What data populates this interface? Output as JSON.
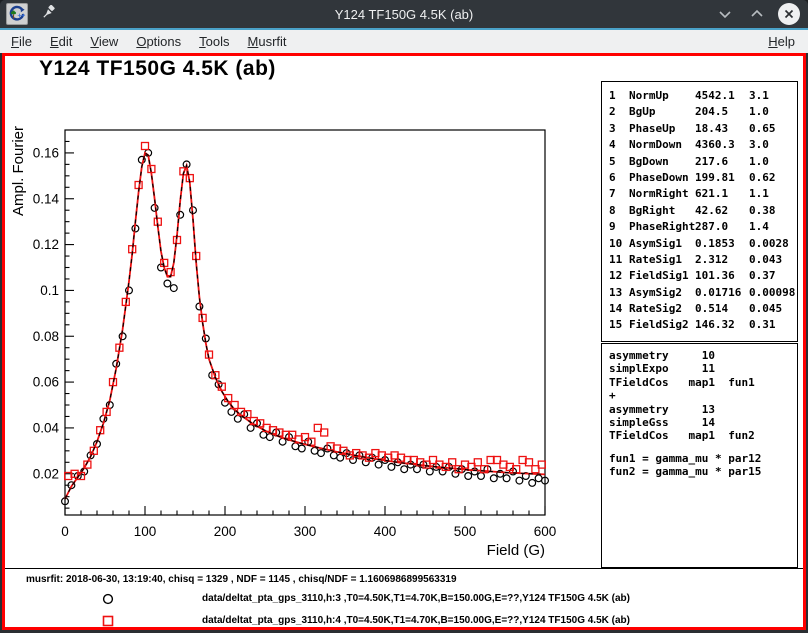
{
  "window": {
    "title": "Y124 TF150G 4.5K (ab)",
    "controls": [
      "minimize",
      "maximize",
      "close"
    ]
  },
  "menubar": {
    "items": [
      {
        "mnemonic": "F",
        "rest": "ile"
      },
      {
        "mnemonic": "E",
        "rest": "dit"
      },
      {
        "mnemonic": "V",
        "rest": "iew"
      },
      {
        "mnemonic": "O",
        "rest": "ptions"
      },
      {
        "mnemonic": "T",
        "rest": "ools"
      },
      {
        "mnemonic": "M",
        "rest": "usrfit"
      }
    ],
    "help": {
      "mnemonic": "H",
      "rest": "elp"
    }
  },
  "plot": {
    "title": "Y124 TF150G 4.5K (ab)",
    "xlabel": "Field (G)",
    "ylabel": "Ampl. Fourier"
  },
  "param_box": {
    "rows": [
      {
        "num": "1",
        "name": "NormUp",
        "value": "4542.1",
        "error": "3.1"
      },
      {
        "num": "2",
        "name": "BgUp",
        "value": "204.5",
        "error": "1.0"
      },
      {
        "num": "3",
        "name": "PhaseUp",
        "value": "18.43",
        "error": "0.65"
      },
      {
        "num": "4",
        "name": "NormDown",
        "value": "4360.3",
        "error": "3.0"
      },
      {
        "num": "5",
        "name": "BgDown",
        "value": "217.6",
        "error": "1.0"
      },
      {
        "num": "6",
        "name": "PhaseDown",
        "value": "199.81",
        "error": "0.62"
      },
      {
        "num": "7",
        "name": "NormRight",
        "value": "621.1",
        "error": "1.1"
      },
      {
        "num": "8",
        "name": "BgRight",
        "value": "42.62",
        "error": "0.38"
      },
      {
        "num": "9",
        "name": "PhaseRight",
        "value": "287.0",
        "error": "1.4"
      },
      {
        "num": "10",
        "name": "AsymSig1",
        "value": "0.1853",
        "error": "0.0028"
      },
      {
        "num": "11",
        "name": "RateSig1",
        "value": "2.312",
        "error": "0.043"
      },
      {
        "num": "12",
        "name": "FieldSig1",
        "value": "101.36",
        "error": "0.37"
      },
      {
        "num": "13",
        "name": "AsymSig2",
        "value": "0.01716",
        "error": "0.00098"
      },
      {
        "num": "14",
        "name": "RateSig2",
        "value": "0.514",
        "error": "0.045"
      },
      {
        "num": "15",
        "name": "FieldSig2",
        "value": "146.32",
        "error": "0.31"
      }
    ]
  },
  "theory_box": {
    "lines": [
      "asymmetry     10",
      "simplExpo     11",
      "TFieldCos   map1  fun1",
      "+",
      "asymmetry     13",
      "simpleGss     14",
      "TFieldCos   map1  fun2",
      "",
      "fun1 = gamma_mu * par12",
      "fun2 = gamma_mu * par15"
    ]
  },
  "footer": {
    "info": "musrfit: 2018-06-30, 13:19:40, chisq = 1329 , NDF = 1145 , chisq/NDF = 1.1606986899563319",
    "legend": [
      {
        "marker": "circle",
        "color": "#000000",
        "label": "data/deltat_pta_gps_3110,h:3 ,T0=4.50K,T1=4.70K,B=150.00G,E=??,Y124 TF150G 4.5K (ab)"
      },
      {
        "marker": "square",
        "color": "#ee1111",
        "label": "data/deltat_pta_gps_3110,h:4 ,T0=4.50K,T1=4.70K,B=150.00G,E=??,Y124 TF150G 4.5K (ab)"
      }
    ]
  },
  "colors": {
    "canvas_highlight": "#ff0000",
    "series_black": "#000000",
    "series_red": "#ee1111",
    "titlebar_bg": "#31363b",
    "menubar_bg": "#eff0f1",
    "accent_blue": "#4aa2c8"
  },
  "chart_data": {
    "type": "scatter",
    "title": "Y124 TF150G 4.5K (ab)",
    "xlabel": "Field (G)",
    "ylabel": "Ampl. Fourier",
    "xlim": [
      0,
      600
    ],
    "ylim": [
      0.002,
      0.17
    ],
    "x_tick_major": 100,
    "x_tick_minor": 20,
    "y_tick_major": 0.02,
    "y_tick_minor": 0.005,
    "grid": false,
    "legend_position": "bottom",
    "series": [
      {
        "name": "h3 (black circles)",
        "marker": "circle",
        "color": "#000000",
        "style": "points",
        "points": [
          [
            0,
            0.008
          ],
          [
            8,
            0.015
          ],
          [
            16,
            0.019
          ],
          [
            24,
            0.021
          ],
          [
            32,
            0.028
          ],
          [
            40,
            0.033
          ],
          [
            48,
            0.044
          ],
          [
            56,
            0.05
          ],
          [
            64,
            0.068
          ],
          [
            72,
            0.08
          ],
          [
            80,
            0.1
          ],
          [
            88,
            0.127
          ],
          [
            96,
            0.157
          ],
          [
            104,
            0.16
          ],
          [
            112,
            0.136
          ],
          [
            120,
            0.11
          ],
          [
            128,
            0.103
          ],
          [
            136,
            0.101
          ],
          [
            144,
            0.133
          ],
          [
            152,
            0.155
          ],
          [
            160,
            0.135
          ],
          [
            168,
            0.093
          ],
          [
            176,
            0.079
          ],
          [
            184,
            0.063
          ],
          [
            192,
            0.059
          ],
          [
            200,
            0.051
          ],
          [
            208,
            0.047
          ],
          [
            216,
            0.044
          ],
          [
            224,
            0.046
          ],
          [
            232,
            0.04
          ],
          [
            240,
            0.042
          ],
          [
            248,
            0.037
          ],
          [
            256,
            0.036
          ],
          [
            264,
            0.038
          ],
          [
            272,
            0.034
          ],
          [
            280,
            0.036
          ],
          [
            288,
            0.032
          ],
          [
            296,
            0.031
          ],
          [
            304,
            0.034
          ],
          [
            312,
            0.03
          ],
          [
            320,
            0.029
          ],
          [
            328,
            0.031
          ],
          [
            336,
            0.028
          ],
          [
            344,
            0.027
          ],
          [
            352,
            0.029
          ],
          [
            360,
            0.026
          ],
          [
            368,
            0.028
          ],
          [
            376,
            0.025
          ],
          [
            384,
            0.027
          ],
          [
            392,
            0.024
          ],
          [
            400,
            0.026
          ],
          [
            408,
            0.023
          ],
          [
            416,
            0.025
          ],
          [
            424,
            0.022
          ],
          [
            432,
            0.024
          ],
          [
            440,
            0.022
          ],
          [
            448,
            0.024
          ],
          [
            456,
            0.021
          ],
          [
            464,
            0.023
          ],
          [
            472,
            0.021
          ],
          [
            480,
            0.023
          ],
          [
            488,
            0.02
          ],
          [
            496,
            0.022
          ],
          [
            504,
            0.019
          ],
          [
            512,
            0.021
          ],
          [
            520,
            0.019
          ],
          [
            528,
            0.022
          ],
          [
            536,
            0.018
          ],
          [
            544,
            0.02
          ],
          [
            552,
            0.018
          ],
          [
            560,
            0.021
          ],
          [
            568,
            0.017
          ],
          [
            576,
            0.019
          ],
          [
            584,
            0.016
          ],
          [
            592,
            0.018
          ],
          [
            600,
            0.017
          ]
        ]
      },
      {
        "name": "h4 (red squares)",
        "marker": "square",
        "color": "#ee1111",
        "style": "points",
        "points": [
          [
            4,
            0.019
          ],
          [
            12,
            0.02
          ],
          [
            20,
            0.019
          ],
          [
            28,
            0.024
          ],
          [
            36,
            0.03
          ],
          [
            44,
            0.039
          ],
          [
            52,
            0.047
          ],
          [
            60,
            0.06
          ],
          [
            68,
            0.075
          ],
          [
            76,
            0.095
          ],
          [
            84,
            0.118
          ],
          [
            92,
            0.146
          ],
          [
            100,
            0.163
          ],
          [
            108,
            0.153
          ],
          [
            116,
            0.13
          ],
          [
            124,
            0.112
          ],
          [
            132,
            0.108
          ],
          [
            140,
            0.122
          ],
          [
            148,
            0.152
          ],
          [
            156,
            0.149
          ],
          [
            164,
            0.115
          ],
          [
            172,
            0.088
          ],
          [
            180,
            0.072
          ],
          [
            188,
            0.063
          ],
          [
            196,
            0.058
          ],
          [
            204,
            0.053
          ],
          [
            212,
            0.05
          ],
          [
            220,
            0.047
          ],
          [
            228,
            0.046
          ],
          [
            236,
            0.043
          ],
          [
            244,
            0.042
          ],
          [
            252,
            0.04
          ],
          [
            260,
            0.039
          ],
          [
            268,
            0.038
          ],
          [
            276,
            0.037
          ],
          [
            284,
            0.037
          ],
          [
            292,
            0.035
          ],
          [
            300,
            0.036
          ],
          [
            308,
            0.034
          ],
          [
            316,
            0.04
          ],
          [
            324,
            0.038
          ],
          [
            332,
            0.032
          ],
          [
            340,
            0.031
          ],
          [
            348,
            0.03
          ],
          [
            356,
            0.028
          ],
          [
            364,
            0.029
          ],
          [
            372,
            0.028
          ],
          [
            380,
            0.027
          ],
          [
            388,
            0.029
          ],
          [
            396,
            0.028
          ],
          [
            404,
            0.027
          ],
          [
            412,
            0.028
          ],
          [
            420,
            0.027
          ],
          [
            428,
            0.026
          ],
          [
            436,
            0.026
          ],
          [
            444,
            0.025
          ],
          [
            452,
            0.024
          ],
          [
            460,
            0.026
          ],
          [
            468,
            0.024
          ],
          [
            476,
            0.023
          ],
          [
            484,
            0.025
          ],
          [
            492,
            0.022
          ],
          [
            500,
            0.024
          ],
          [
            508,
            0.023
          ],
          [
            516,
            0.025
          ],
          [
            524,
            0.022
          ],
          [
            532,
            0.026
          ],
          [
            540,
            0.026
          ],
          [
            548,
            0.024
          ],
          [
            556,
            0.023
          ],
          [
            564,
            0.022
          ],
          [
            572,
            0.026
          ],
          [
            580,
            0.025
          ],
          [
            588,
            0.022
          ],
          [
            596,
            0.024
          ]
        ]
      },
      {
        "name": "fit (two-component TFieldCos)",
        "marker": "none",
        "color": "#ee1111",
        "style": "line",
        "overlay_dash_color": "#000000",
        "points": [
          [
            0,
            0.009
          ],
          [
            8,
            0.0145
          ],
          [
            16,
            0.0185
          ],
          [
            24,
            0.0225
          ],
          [
            32,
            0.0275
          ],
          [
            40,
            0.034
          ],
          [
            48,
            0.042
          ],
          [
            56,
            0.052
          ],
          [
            64,
            0.066
          ],
          [
            72,
            0.083
          ],
          [
            80,
            0.104
          ],
          [
            84,
            0.116
          ],
          [
            88,
            0.13
          ],
          [
            92,
            0.143
          ],
          [
            96,
            0.154
          ],
          [
            100,
            0.16
          ],
          [
            104,
            0.159
          ],
          [
            108,
            0.151
          ],
          [
            112,
            0.14
          ],
          [
            116,
            0.128
          ],
          [
            120,
            0.117
          ],
          [
            124,
            0.11
          ],
          [
            128,
            0.106
          ],
          [
            132,
            0.106
          ],
          [
            136,
            0.112
          ],
          [
            140,
            0.124
          ],
          [
            144,
            0.139
          ],
          [
            148,
            0.151
          ],
          [
            152,
            0.1545
          ],
          [
            156,
            0.147
          ],
          [
            160,
            0.131
          ],
          [
            164,
            0.112
          ],
          [
            168,
            0.097
          ],
          [
            172,
            0.086
          ],
          [
            176,
            0.077
          ],
          [
            180,
            0.07
          ],
          [
            188,
            0.062
          ],
          [
            196,
            0.056
          ],
          [
            204,
            0.0515
          ],
          [
            212,
            0.048
          ],
          [
            220,
            0.0455
          ],
          [
            228,
            0.0435
          ],
          [
            236,
            0.0415
          ],
          [
            244,
            0.04
          ],
          [
            252,
            0.0385
          ],
          [
            260,
            0.0373
          ],
          [
            268,
            0.0362
          ],
          [
            276,
            0.0352
          ],
          [
            284,
            0.0344
          ],
          [
            292,
            0.0336
          ],
          [
            300,
            0.0328
          ],
          [
            312,
            0.0318
          ],
          [
            324,
            0.0308
          ],
          [
            336,
            0.0298
          ],
          [
            348,
            0.029
          ],
          [
            360,
            0.0282
          ],
          [
            372,
            0.0274
          ],
          [
            384,
            0.0267
          ],
          [
            396,
            0.026
          ],
          [
            408,
            0.0254
          ],
          [
            420,
            0.0248
          ],
          [
            432,
            0.0243
          ],
          [
            444,
            0.0238
          ],
          [
            456,
            0.0233
          ],
          [
            468,
            0.0229
          ],
          [
            480,
            0.0225
          ],
          [
            492,
            0.0221
          ],
          [
            504,
            0.0217
          ],
          [
            516,
            0.0214
          ],
          [
            528,
            0.0211
          ],
          [
            540,
            0.0208
          ],
          [
            552,
            0.0205
          ],
          [
            564,
            0.0203
          ],
          [
            576,
            0.0201
          ],
          [
            588,
            0.0199
          ],
          [
            600,
            0.0197
          ]
        ]
      }
    ]
  }
}
